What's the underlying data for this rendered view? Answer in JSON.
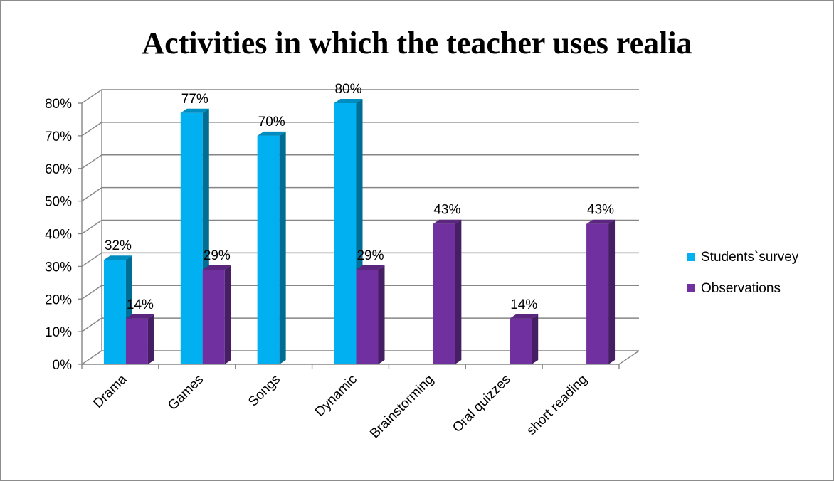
{
  "chart_data": {
    "type": "bar",
    "title": "Activities in which the teacher uses realia",
    "categories": [
      "Drama",
      "Games",
      "Songs",
      "Dynamic",
      "Brainstorming",
      "Oral quizzes",
      "short reading"
    ],
    "series": [
      {
        "name": "Students`survey",
        "color": "#00b0f0",
        "values": [
          32,
          77,
          70,
          80,
          null,
          null,
          null
        ],
        "labels": [
          "32%",
          "77%",
          "70%",
          "80%",
          "",
          "",
          ""
        ]
      },
      {
        "name": "Observations",
        "color": "#7030a0",
        "values": [
          14,
          29,
          null,
          29,
          43,
          14,
          43
        ],
        "labels": [
          "14%",
          "29%",
          "",
          "29%",
          "43%",
          "14%",
          "43%"
        ]
      }
    ],
    "ylim": [
      0,
      80
    ],
    "yticks": [
      "0%",
      "10%",
      "20%",
      "30%",
      "40%",
      "50%",
      "60%",
      "70%",
      "80%"
    ],
    "xlabel": "",
    "ylabel": "",
    "grid": true,
    "legend_position": "right",
    "style": "3d-clustered-column"
  }
}
